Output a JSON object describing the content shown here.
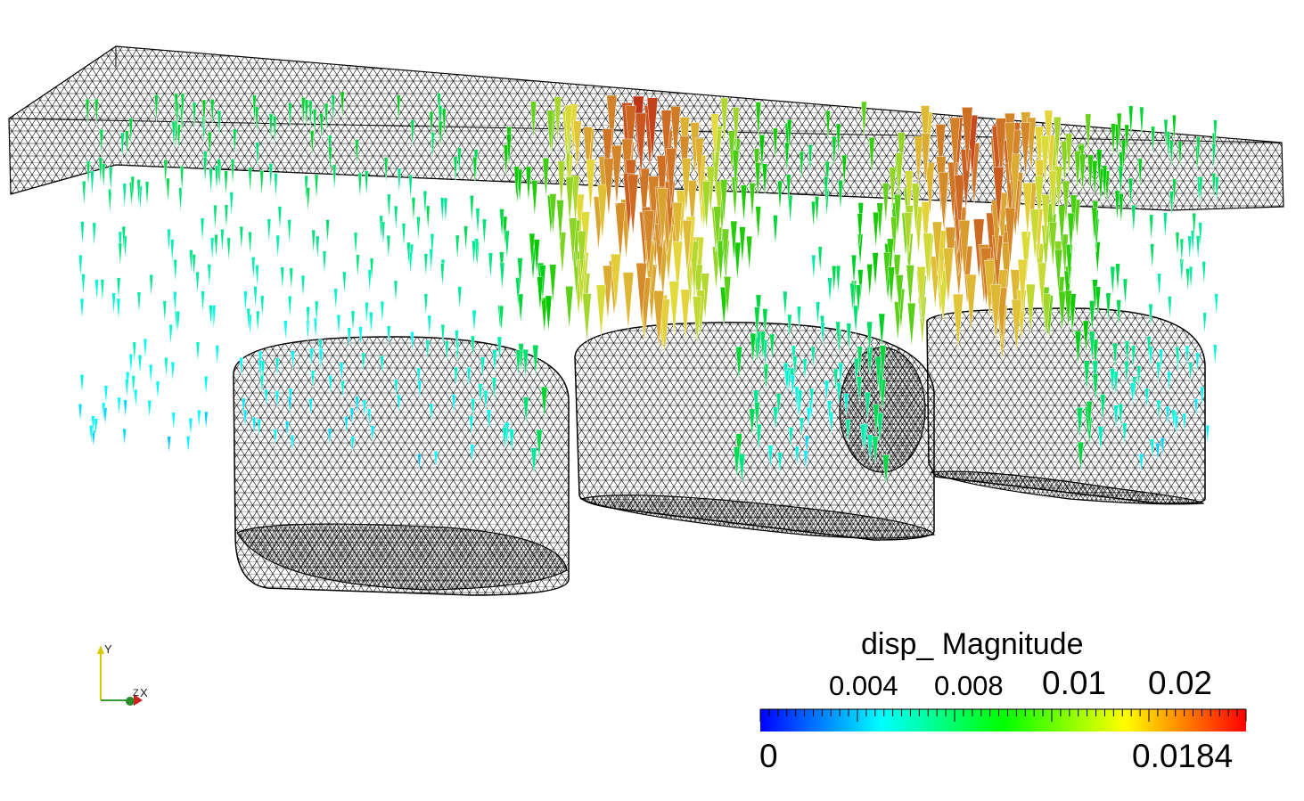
{
  "legend": {
    "title": "disp_ Magnitude",
    "min_label": "0",
    "max_label": "0.0184",
    "ticks": [
      {
        "label": "0.004",
        "value": 0.004
      },
      {
        "label": "0.008",
        "value": 0.008
      },
      {
        "label": "0.01",
        "value": 0.01
      },
      {
        "label": "0.02",
        "value": 0.02
      }
    ],
    "colormap": [
      "#0000ff",
      "#00ffff",
      "#00ff00",
      "#ffff00",
      "#ff0000"
    ]
  },
  "axes": {
    "y_label": "Y",
    "x_label": "X",
    "z_label": "Z"
  },
  "colors": {
    "background": "#ffffff",
    "mesh_lines": "#000000"
  }
}
